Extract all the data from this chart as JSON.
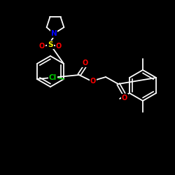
{
  "background_color": "#000000",
  "bond_color": "#ffffff",
  "atom_colors": {
    "N": "#0000ff",
    "O": "#ff0000",
    "S": "#ffff00",
    "Cl": "#00cc00",
    "C": "#ffffff"
  },
  "figsize": [
    2.5,
    2.5
  ],
  "dpi": 100
}
